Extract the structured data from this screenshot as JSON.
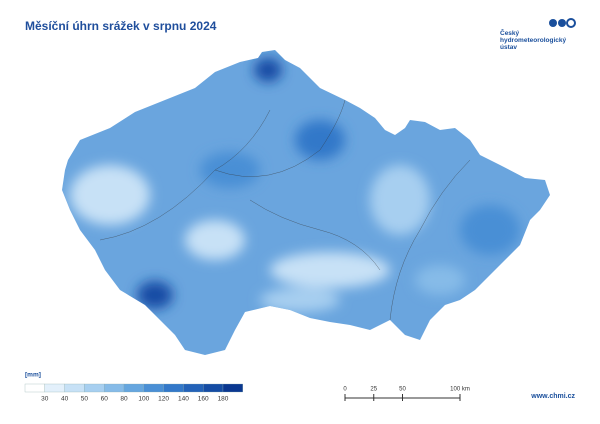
{
  "header": {
    "title": "Měsíční úhrn srážek v srpnu 2024"
  },
  "logo": {
    "lines": [
      "Český",
      "hydrometeorologický",
      "ústav"
    ]
  },
  "legend": {
    "unit": "[mm]",
    "colors": [
      "#ffffff",
      "#e3f0fb",
      "#c7e1f6",
      "#a7cff0",
      "#86bbe8",
      "#66a6df",
      "#4a8fd5",
      "#3378c9",
      "#2362b8",
      "#154ca4",
      "#0a3790"
    ],
    "labels": [
      "30",
      "40",
      "50",
      "60",
      "80",
      "100",
      "120",
      "140",
      "160",
      "180"
    ]
  },
  "scale_bar": {
    "labels": [
      "0",
      "25",
      "50",
      "100 km"
    ]
  },
  "footer": {
    "url": "www.chmi.cz"
  }
}
